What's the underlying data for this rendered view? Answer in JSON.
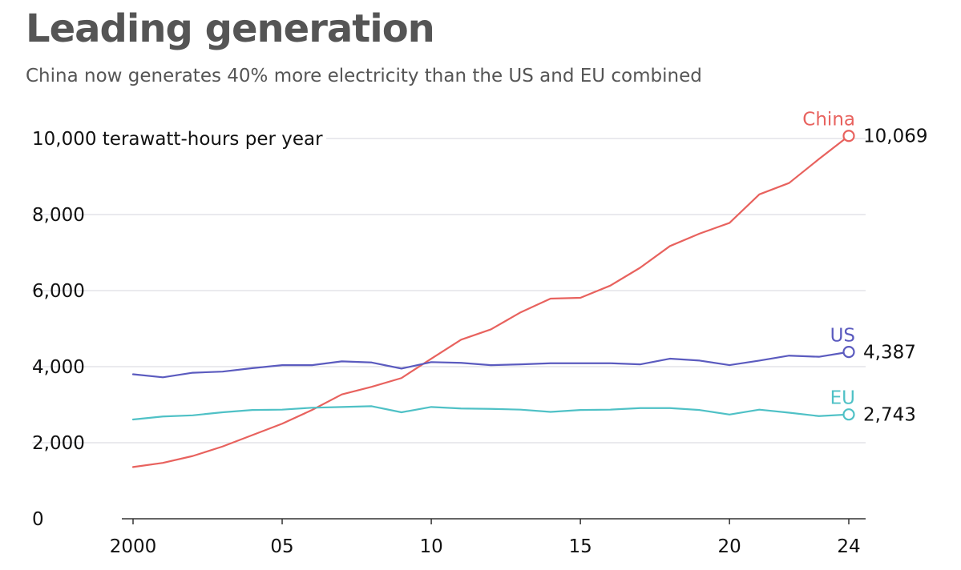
{
  "header": {
    "title": "Leading generation",
    "subtitle": "China now generates 40% more electricity than the US and EU combined"
  },
  "chart_data": {
    "type": "line",
    "title": "Leading generation",
    "subtitle": "China now generates 40% more electricity than the US and EU combined",
    "ylabel": "terawatt-hours per year",
    "ylim": [
      0,
      10000
    ],
    "xlim": [
      2000,
      2024
    ],
    "yticks": [
      {
        "value": 0,
        "label": "0"
      },
      {
        "value": 2000,
        "label": "2,000"
      },
      {
        "value": 4000,
        "label": "4,000"
      },
      {
        "value": 6000,
        "label": "6,000"
      },
      {
        "value": 8000,
        "label": "8,000"
      },
      {
        "value": 10000,
        "label": "10,000 terawatt-hours per year"
      }
    ],
    "xticks": [
      {
        "value": 2000,
        "label": "2000"
      },
      {
        "value": 2005,
        "label": "05"
      },
      {
        "value": 2010,
        "label": "10"
      },
      {
        "value": 2015,
        "label": "15"
      },
      {
        "value": 2020,
        "label": "20"
      },
      {
        "value": 2024,
        "label": "24"
      }
    ],
    "x": [
      2000,
      2001,
      2002,
      2003,
      2004,
      2005,
      2006,
      2007,
      2008,
      2009,
      2010,
      2011,
      2012,
      2013,
      2014,
      2015,
      2016,
      2017,
      2018,
      2019,
      2020,
      2021,
      2022,
      2023,
      2024
    ],
    "series": [
      {
        "name": "China",
        "color": "#e8625e",
        "end_label": "10,069",
        "values": [
          1360,
          1470,
          1650,
          1900,
          2200,
          2500,
          2860,
          3270,
          3470,
          3700,
          4210,
          4710,
          4980,
          5430,
          5790,
          5810,
          6130,
          6600,
          7170,
          7500,
          7780,
          8530,
          8830,
          9460,
          10069
        ]
      },
      {
        "name": "US",
        "color": "#5b5bbf",
        "end_label": "4,387",
        "values": [
          3800,
          3720,
          3840,
          3870,
          3960,
          4040,
          4040,
          4140,
          4110,
          3950,
          4120,
          4100,
          4040,
          4060,
          4090,
          4090,
          4090,
          4060,
          4210,
          4160,
          4040,
          4160,
          4290,
          4260,
          4387
        ]
      },
      {
        "name": "EU",
        "color": "#4fc1c6",
        "end_label": "2,743",
        "values": [
          2610,
          2690,
          2720,
          2800,
          2860,
          2870,
          2920,
          2940,
          2960,
          2800,
          2940,
          2900,
          2890,
          2870,
          2810,
          2860,
          2870,
          2910,
          2910,
          2860,
          2740,
          2870,
          2790,
          2700,
          2743
        ]
      }
    ]
  }
}
